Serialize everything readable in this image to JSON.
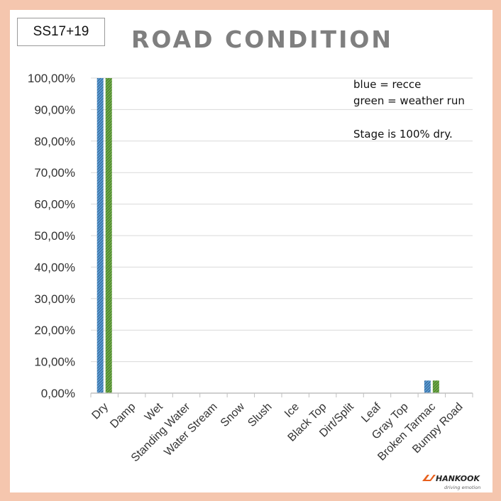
{
  "stage_label": "SS17+19",
  "notes": {
    "line1": "blue = recce",
    "line2": "green = weather run",
    "line3": "Stage is 100% dry."
  },
  "logo": {
    "brand": "HANKOOK",
    "tagline": "driving emotion",
    "color": "#e8601c"
  },
  "colors": {
    "background": "#f5c6ae",
    "recce": "#5b9bd5",
    "weather_run": "#70ad47",
    "grid": "#d9d9d9",
    "axis": "#bfbfbf"
  },
  "chart_data": {
    "type": "bar",
    "title": "ROAD CONDITION",
    "categories": [
      "Dry",
      "Damp",
      "Wet",
      "Standing Water",
      "Water Stream",
      "Snow",
      "Slush",
      "Ice",
      "Black Top",
      "Dirt/Split",
      "Leaf",
      "Gray Top",
      "Broken Tarmac",
      "Bumpy Road"
    ],
    "series": [
      {
        "values": [
          100,
          0,
          0,
          0,
          0,
          0,
          0,
          0,
          0,
          0,
          0,
          0,
          4,
          0
        ],
        "color": "#5b9bd5",
        "pattern": "hatched"
      },
      {
        "values": [
          100,
          0,
          0,
          0,
          0,
          0,
          0,
          0,
          0,
          0,
          0,
          0,
          4,
          0
        ],
        "color": "#70ad47",
        "pattern": "hatched"
      }
    ],
    "ylim": [
      0,
      100
    ],
    "yticks": [
      "0,00%",
      "10,00%",
      "20,00%",
      "30,00%",
      "40,00%",
      "50,00%",
      "60,00%",
      "70,00%",
      "80,00%",
      "90,00%",
      "100,00%"
    ],
    "grid": true,
    "legend": "none"
  }
}
